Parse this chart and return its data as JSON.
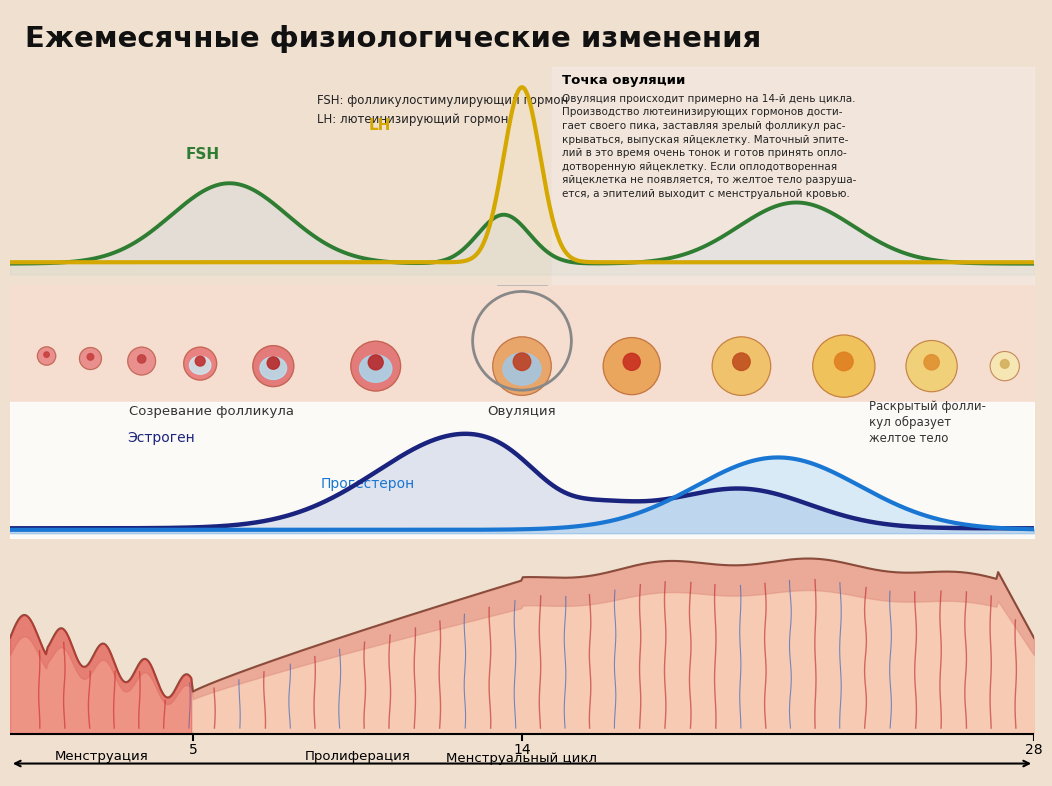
{
  "title": "Ежемесячные физиологические изменения",
  "title_bg": "#f0c8c0",
  "subtitle1": "FSH: фолликулостимулирующий гормон",
  "subtitle2": "LH: лютеинизирующий гормон",
  "ovulation_title": "Точка овуляции",
  "ovulation_text": "Овуляция происходит примерно на 14-й день цикла.\nПроизводство лютеинизирующих гормонов дости-\nгает своего пика, заставляя зрелый фолликул рас-\nкрываться, выпуская яйцеклетку. Маточный эпите-\nлий в это время очень тонок и готов принять опло-\nдотворенную яйцеклетку. Если оплодотворенная\nяйцеклетка не появляется, то желтое тело разруша-\nется, а эпителий выходит с менструальной кровью.",
  "label_LH": "LH",
  "label_FSH": "FSH",
  "label_estrogen": "Эстроген",
  "label_progesterone": "Прогестерон",
  "label_follicle": "Созревание фолликула",
  "label_ovulation": "Овуляция",
  "label_corpus": "Раскрытый фолли-\nкул образует\nжелтое тело",
  "label_menstruation": "Менструация",
  "label_proliferation": "Пролиферация",
  "label_cycle": "Менструальный цикл",
  "tick5": "5",
  "tick14": "14",
  "tick28": "28",
  "color_LH": "#d4a800",
  "color_FSH": "#2e7d32",
  "color_estrogen": "#1a237e",
  "color_progesterone": "#1976d2",
  "color_bg_hormones": "#ffffff",
  "color_bg_middle": "#fdf5f0",
  "color_bg_uterus": "#ffffff",
  "color_follicle_strip": "#f5ddd0"
}
